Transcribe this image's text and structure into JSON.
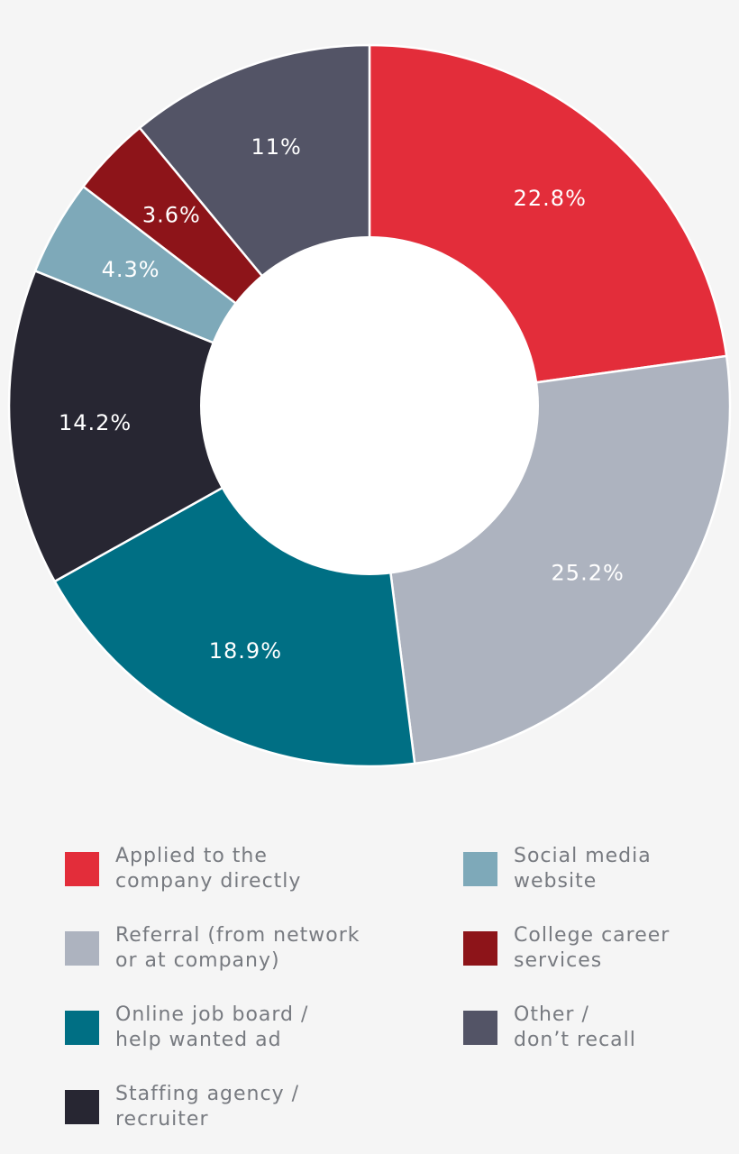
{
  "chart_data": {
    "type": "pie",
    "donut": true,
    "title": "",
    "slices": [
      {
        "label": [
          "Applied to the",
          "company directly"
        ],
        "value": 22.8,
        "display": "22.8%",
        "color": "#e32d3a"
      },
      {
        "label": [
          "Referral (from network",
          "or at company)"
        ],
        "value": 25.2,
        "display": "25.2%",
        "color": "#adb3bf"
      },
      {
        "label": [
          "Online job board /",
          "help wanted ad"
        ],
        "value": 18.9,
        "display": "18.9%",
        "color": "#006f84"
      },
      {
        "label": [
          "Staffing agency /",
          "recruiter"
        ],
        "value": 14.2,
        "display": "14.2%",
        "color": "#272632"
      },
      {
        "label": [
          "Social media",
          "website"
        ],
        "value": 4.3,
        "display": "4.3%",
        "color": "#7ea9b9"
      },
      {
        "label": [
          "College career",
          "services"
        ],
        "value": 3.6,
        "display": "3.6%",
        "color": "#8d1419"
      },
      {
        "label": [
          "Other /",
          "don’t recall"
        ],
        "value": 11,
        "display": "11%",
        "color": "#535466"
      }
    ],
    "legend_placement": "bottom"
  }
}
